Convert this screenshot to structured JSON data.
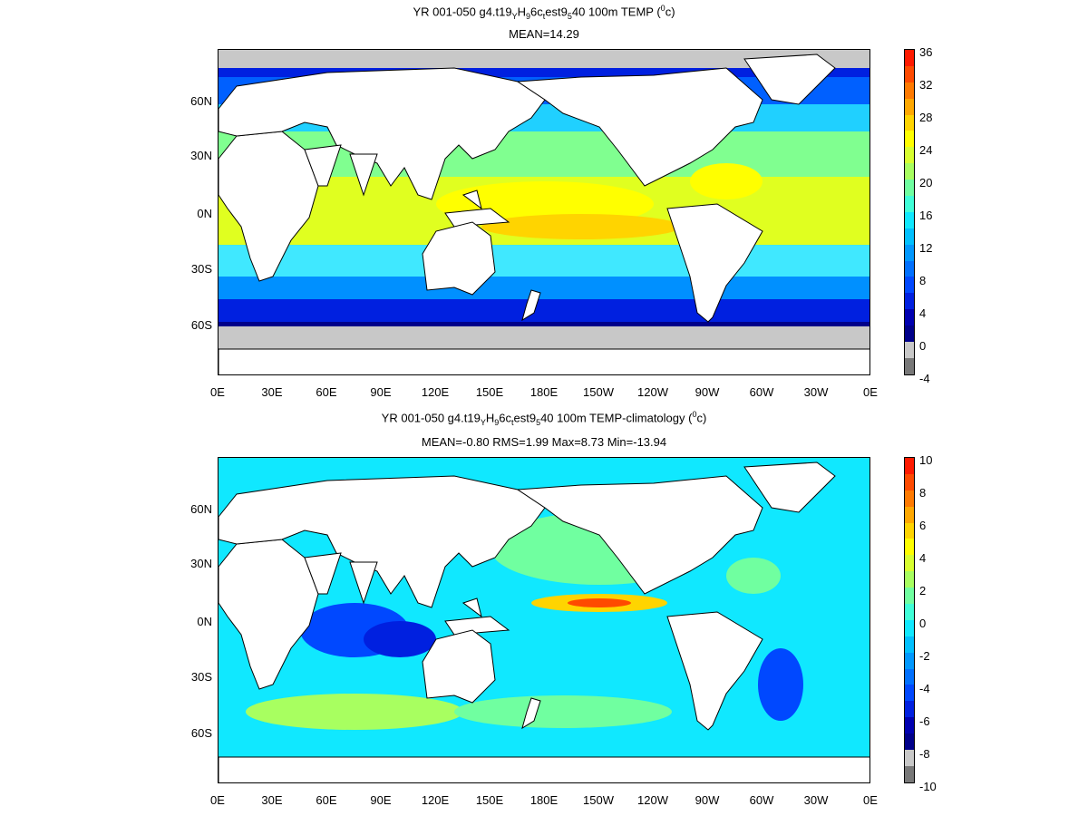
{
  "panels": [
    {
      "title_parts": [
        "YR 001-050 g4.t19",
        "Y",
        "H",
        "9",
        "6c",
        "t",
        "est9",
        "5",
        "40 100m TEMP (",
        "0",
        "c)"
      ],
      "subtitle": "MEAN=14.29",
      "field": "temperature",
      "colorbar": {
        "labels": [
          "36",
          "32",
          "28",
          "24",
          "20",
          "16",
          "12",
          "8",
          "4",
          "0",
          "-4"
        ],
        "colors": [
          "#ff1a00",
          "#ff4a00",
          "#ff7a00",
          "#ffa800",
          "#ffd400",
          "#ffff00",
          "#d8ff30",
          "#a8ff60",
          "#70ffa0",
          "#40ffd8",
          "#10e8ff",
          "#00c0ff",
          "#0098ff",
          "#0070ff",
          "#0048ff",
          "#0020e0",
          "#0000b0",
          "#00008a",
          "#c8c8c8",
          "#787878"
        ]
      }
    },
    {
      "title_parts": [
        "YR 001-050 g4.t19",
        "Y",
        "H",
        "9",
        "6c",
        "t",
        "est9",
        "5",
        "40 100m TEMP-climatology (",
        "0",
        "c)"
      ],
      "subtitle": "MEAN=-0.80   RMS=1.99   Max=8.73   Min=-13.94",
      "field": "anomaly",
      "colorbar": {
        "labels": [
          "10",
          "8",
          "6",
          "4",
          "2",
          "0",
          "-2",
          "-4",
          "-6",
          "-8",
          "-10"
        ],
        "colors": [
          "#ff1a00",
          "#ff4a00",
          "#ff7a00",
          "#ffa800",
          "#ffd400",
          "#ffff00",
          "#d8ff30",
          "#a8ff60",
          "#70ffa0",
          "#40ffd8",
          "#10e8ff",
          "#00c0ff",
          "#0098ff",
          "#0070ff",
          "#0048ff",
          "#0020e0",
          "#0000b0",
          "#00008a",
          "#c8c8c8",
          "#787878"
        ]
      }
    }
  ],
  "axes": {
    "lat_labels": [
      "60N",
      "30N",
      "0N",
      "30S",
      "60S"
    ],
    "lon_labels": [
      "0E",
      "30E",
      "60E",
      "90E",
      "120E",
      "150E",
      "180E",
      "150W",
      "120W",
      "90W",
      "60W",
      "30W",
      "0E"
    ]
  }
}
